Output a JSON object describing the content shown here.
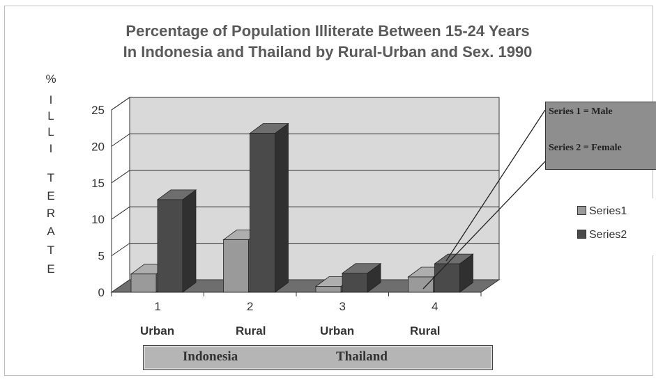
{
  "chart_data": {
    "type": "bar",
    "title_line1": "Percentage of Population Illiterate Between 15-24 Years",
    "title_line2": "In Indonesia and Thailand by Rural-Urban and Sex. 1990",
    "ylabel_letters": [
      "%",
      "I",
      "L",
      "L",
      "I",
      "T",
      "E",
      "R",
      "A",
      "T",
      "E"
    ],
    "ylim": [
      0,
      25
    ],
    "yticks": [
      "0",
      "5",
      "10",
      "15",
      "20",
      "25"
    ],
    "categories": [
      "1",
      "2",
      "3",
      "4"
    ],
    "category_sublabels": [
      "Urban",
      "Rural",
      "Urban",
      "Rural"
    ],
    "groups": [
      "Indonesia",
      "Thailand"
    ],
    "series": [
      {
        "name": "Series1",
        "values": [
          2.5,
          7.2,
          0.8,
          2.1
        ],
        "color": "#9a9a9a"
      },
      {
        "name": "Series2",
        "values": [
          12.7,
          21.8,
          2.6,
          3.9
        ],
        "color": "#4a4a4a"
      }
    ],
    "annotation_lines": [
      "Series 1 = Male",
      "Series 2 = Female"
    ],
    "legend_position": "right",
    "grid": true
  },
  "colors": {
    "wall": "#d9d9d9",
    "floor": "#6e6e6e",
    "grid": "#2b2b2b",
    "title": "#5a5a5a"
  }
}
